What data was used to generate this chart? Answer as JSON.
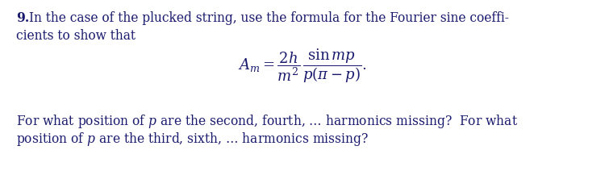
{
  "background_color": "#ffffff",
  "figsize": [
    7.5,
    2.12
  ],
  "dpi": 100,
  "text_color": "#1a1a6e",
  "font_size_main": 11.2,
  "font_size_formula": 13.0
}
